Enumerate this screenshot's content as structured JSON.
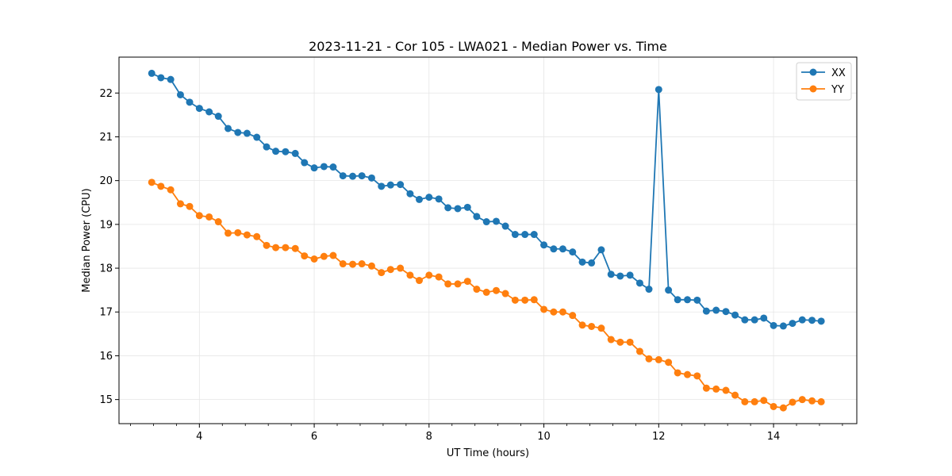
{
  "chart_data": {
    "type": "line",
    "title": "2023-11-21 - Cor 105 - LWA021 - Median Power vs. Time",
    "xlabel": "UT Time (hours)",
    "ylabel": "Median Power (CPU)",
    "xlim": [
      2.6,
      15.45
    ],
    "ylim": [
      14.45,
      22.82
    ],
    "xticks": [
      4,
      6,
      8,
      10,
      12,
      14
    ],
    "xtick_labels": [
      "4",
      "6",
      "8",
      "10",
      "12",
      "14"
    ],
    "yticks": [
      15,
      16,
      17,
      18,
      19,
      20,
      21,
      22
    ],
    "ytick_labels": [
      "15",
      "16",
      "17",
      "18",
      "19",
      "20",
      "21",
      "22"
    ],
    "minor_x_step": 0.4,
    "grid": true,
    "legend_position": "top-right",
    "x": [
      3.17,
      3.33,
      3.5,
      3.67,
      3.83,
      4.0,
      4.17,
      4.33,
      4.5,
      4.67,
      4.83,
      5.0,
      5.17,
      5.33,
      5.5,
      5.67,
      5.83,
      6.0,
      6.17,
      6.33,
      6.5,
      6.67,
      6.83,
      7.0,
      7.17,
      7.33,
      7.5,
      7.67,
      7.83,
      8.0,
      8.17,
      8.33,
      8.5,
      8.67,
      8.83,
      9.0,
      9.17,
      9.33,
      9.5,
      9.67,
      9.83,
      10.0,
      10.17,
      10.33,
      10.5,
      10.67,
      10.83,
      11.0,
      11.17,
      11.33,
      11.5,
      11.67,
      11.83,
      12.0,
      12.17,
      12.33,
      12.5,
      12.67,
      12.83,
      13.0,
      13.17,
      13.33,
      13.5,
      13.67,
      13.83,
      14.0,
      14.17,
      14.33,
      14.5,
      14.67,
      14.83
    ],
    "series": [
      {
        "name": "XX",
        "color": "#1f77b4",
        "values": [
          22.45,
          22.35,
          22.31,
          21.96,
          21.79,
          21.65,
          21.57,
          21.47,
          21.19,
          21.1,
          21.08,
          20.99,
          20.77,
          20.67,
          20.66,
          20.62,
          20.41,
          20.29,
          20.32,
          20.31,
          20.11,
          20.1,
          20.11,
          20.06,
          19.87,
          19.9,
          19.91,
          19.7,
          19.57,
          19.62,
          19.58,
          19.38,
          19.36,
          19.39,
          19.18,
          19.06,
          19.07,
          18.96,
          18.77,
          18.77,
          18.77,
          18.53,
          18.44,
          18.44,
          18.37,
          18.14,
          18.12,
          18.42,
          17.86,
          17.82,
          17.84,
          17.66,
          17.52,
          22.08,
          17.5,
          17.28,
          17.28,
          17.27,
          17.02,
          17.04,
          17.01,
          16.93,
          16.82,
          16.82,
          16.86,
          16.69,
          16.68,
          16.74,
          16.82,
          16.81,
          16.79
        ]
      },
      {
        "name": "YY",
        "color": "#ff7f0e",
        "values": [
          19.96,
          19.87,
          19.79,
          19.47,
          19.41,
          19.2,
          19.17,
          19.06,
          18.8,
          18.81,
          18.76,
          18.72,
          18.52,
          18.47,
          18.47,
          18.45,
          18.28,
          18.21,
          18.27,
          18.29,
          18.1,
          18.09,
          18.1,
          18.05,
          17.9,
          17.97,
          18.0,
          17.84,
          17.72,
          17.84,
          17.8,
          17.64,
          17.64,
          17.7,
          17.52,
          17.45,
          17.49,
          17.42,
          17.27,
          17.27,
          17.28,
          17.06,
          17.0,
          17.0,
          16.92,
          16.7,
          16.67,
          16.63,
          16.37,
          16.31,
          16.31,
          16.1,
          15.93,
          15.91,
          15.85,
          15.61,
          15.57,
          15.54,
          15.26,
          15.24,
          15.21,
          15.1,
          14.95,
          14.95,
          14.98,
          14.84,
          14.81,
          14.94,
          15.0,
          14.97,
          14.95
        ]
      }
    ]
  }
}
